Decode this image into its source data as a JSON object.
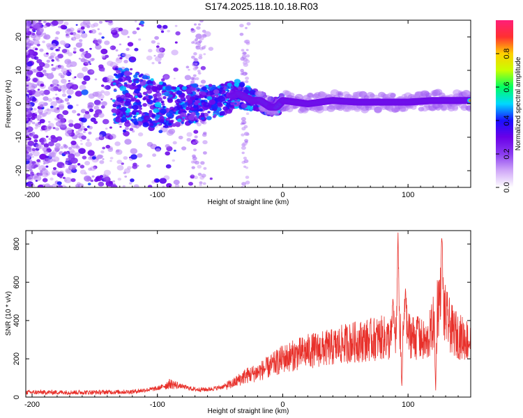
{
  "figure_title": "S174.2025.118.10.18.R03",
  "chart_data": [
    {
      "type": "heatmap",
      "xlabel": "Height of straight line (km)",
      "ylabel": "Frequency (Hz)",
      "xlim": [
        -205,
        150
      ],
      "ylim": [
        -25,
        25
      ],
      "xticks": [
        -200,
        -100,
        0,
        100
      ],
      "yticks": [
        20,
        10,
        0,
        -10,
        -20
      ],
      "colorbar": {
        "label": "Normalized spectral amplitude",
        "range": [
          0,
          1
        ],
        "ticks": [
          0.0,
          0.2,
          0.4,
          0.6,
          0.8
        ],
        "colormap": [
          "#ffffff",
          "#d0a8f8",
          "#8a3cf0",
          "#6a00e8",
          "#1a10ff",
          "#00d8ff",
          "#00ff60",
          "#c8ff00",
          "#ffd000",
          "#ff3030",
          "#ff1e78"
        ]
      },
      "ridge": {
        "description_free": true,
        "points": [
          [
            -130,
            3
          ],
          [
            -110,
            1
          ],
          [
            -90,
            -1
          ],
          [
            -70,
            0
          ],
          [
            -50,
            1
          ],
          [
            -35,
            3
          ],
          [
            -25,
            1
          ],
          [
            -18,
            1
          ],
          [
            -10,
            -1
          ],
          [
            -5,
            -1
          ],
          [
            0,
            1
          ],
          [
            20,
            0
          ],
          [
            40,
            1
          ],
          [
            60,
            0.5
          ],
          [
            80,
            0.5
          ],
          [
            100,
            0.5
          ],
          [
            120,
            1
          ],
          [
            150,
            1
          ]
        ],
        "peak_amplitude_from_km": 40
      }
    },
    {
      "type": "line",
      "xlabel": "Height of straight line (km)",
      "ylabel": "SNR (10 * v/v)",
      "xlim": [
        -205,
        150
      ],
      "ylim": [
        0,
        870
      ],
      "xticks": [
        -200,
        -100,
        0,
        100
      ],
      "yticks": [
        0,
        200,
        400,
        600,
        800
      ],
      "color": "#e8302a",
      "envelope": {
        "x": [
          -205,
          -150,
          -120,
          -100,
          -90,
          -80,
          -70,
          -60,
          -50,
          -40,
          -30,
          -20,
          -10,
          0,
          10,
          20,
          30,
          40,
          50,
          60,
          70,
          80,
          85,
          90,
          95,
          100,
          110,
          115,
          120,
          125,
          130,
          135,
          140,
          150
        ],
        "y": [
          25,
          25,
          28,
          45,
          70,
          55,
          40,
          40,
          50,
          70,
          110,
          130,
          160,
          200,
          220,
          240,
          250,
          260,
          280,
          290,
          300,
          310,
          300,
          330,
          380,
          330,
          300,
          280,
          380,
          520,
          420,
          350,
          320,
          290
        ]
      },
      "spikes": [
        {
          "x": 92,
          "y": 860
        },
        {
          "x": 95,
          "y": 40
        },
        {
          "x": 98,
          "y": 580
        },
        {
          "x": 108,
          "y": 420
        },
        {
          "x": 122,
          "y": 20
        },
        {
          "x": 127,
          "y": 865
        },
        {
          "x": 88,
          "y": 520
        }
      ]
    }
  ]
}
